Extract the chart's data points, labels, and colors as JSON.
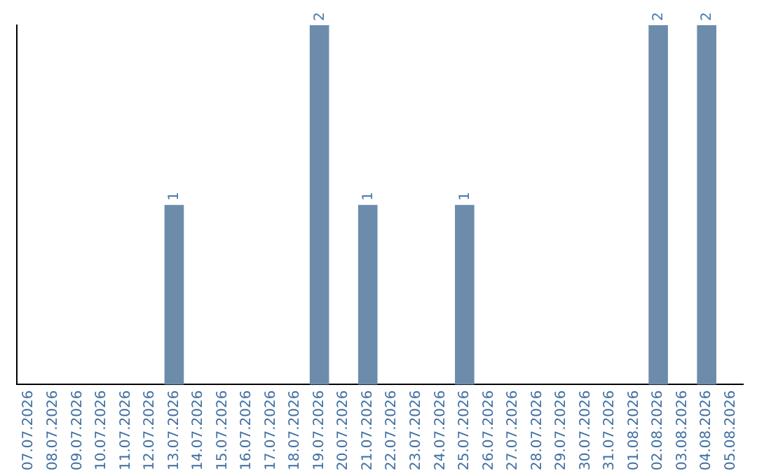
{
  "chart_data": {
    "type": "bar",
    "categories": [
      "07.07.2026",
      "08.07.2026",
      "09.07.2026",
      "10.07.2026",
      "11.07.2026",
      "12.07.2026",
      "13.07.2026",
      "14.07.2026",
      "15.07.2026",
      "16.07.2026",
      "17.07.2026",
      "18.07.2026",
      "19.07.2026",
      "20.07.2026",
      "21.07.2026",
      "22.07.2026",
      "23.07.2026",
      "24.07.2026",
      "25.07.2026",
      "26.07.2026",
      "27.07.2026",
      "28.07.2026",
      "29.07.2026",
      "30.07.2026",
      "31.07.2026",
      "01.08.2026",
      "02.08.2026",
      "03.08.2026",
      "04.08.2026",
      "05.08.2026"
    ],
    "values": [
      0,
      0,
      0,
      0,
      0,
      0,
      1,
      0,
      0,
      0,
      0,
      0,
      2,
      0,
      1,
      0,
      0,
      0,
      1,
      0,
      0,
      0,
      0,
      0,
      0,
      0,
      2,
      0,
      2,
      0
    ],
    "value_labels": [
      null,
      null,
      null,
      null,
      null,
      null,
      "1",
      null,
      null,
      null,
      null,
      null,
      "2",
      null,
      "1",
      null,
      null,
      null,
      "1",
      null,
      null,
      null,
      null,
      null,
      null,
      null,
      "2",
      null,
      "2",
      null
    ],
    "color": "#6d8cab",
    "grid": false,
    "legend": false
  }
}
